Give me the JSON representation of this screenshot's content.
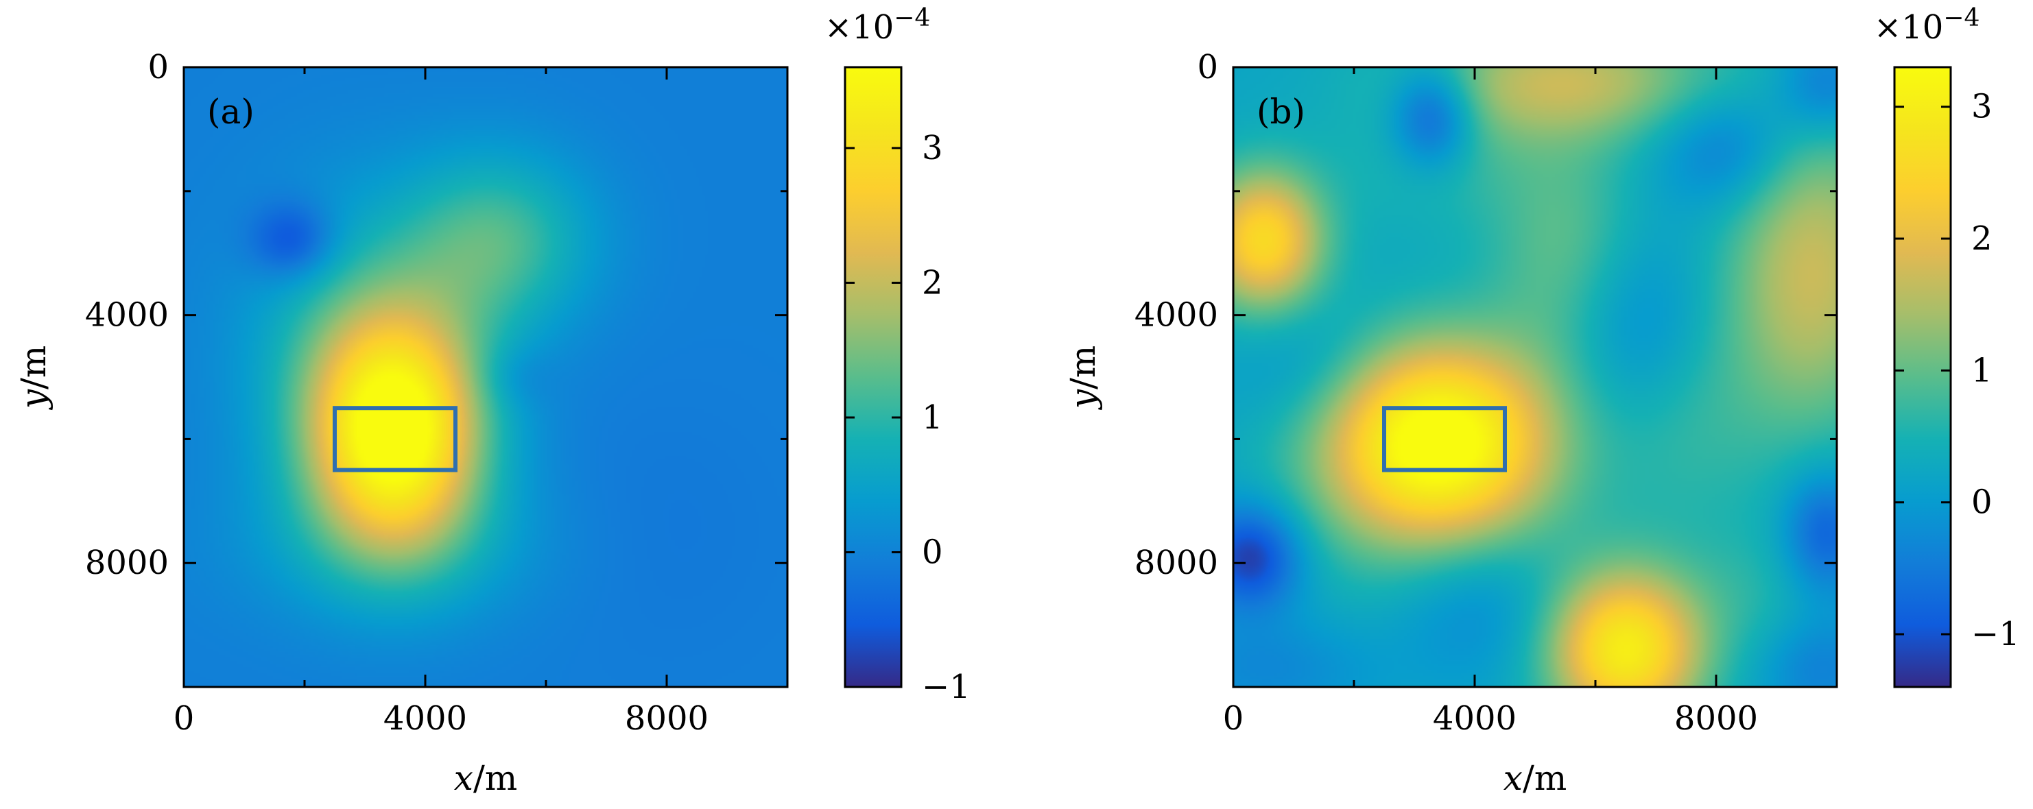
{
  "chart_data": [
    {
      "type": "heatmap",
      "panel_label": "(a)",
      "xlabel_var": "x",
      "xlabel_unit": "/m",
      "ylabel_var": "y",
      "ylabel_unit": "/m",
      "xlim": [
        0,
        10000
      ],
      "ylim": [
        0,
        10000
      ],
      "y_inverted": true,
      "xticks": [
        0,
        4000,
        8000
      ],
      "xtick_labels": [
        "0",
        "4000",
        "8000"
      ],
      "xminor": [
        2000,
        6000
      ],
      "yticks": [
        0,
        4000,
        8000
      ],
      "ytick_labels": [
        "0",
        "4000",
        "8000"
      ],
      "yminor": [
        2000,
        6000
      ],
      "colorbar": {
        "min": -1.0,
        "max": 3.6,
        "ticks": [
          -1,
          0,
          1,
          2,
          3
        ],
        "tick_labels": [
          "−1",
          "0",
          "1",
          "2",
          "3"
        ],
        "multiplier_base": "×10",
        "multiplier_exp": "−4"
      },
      "background": -0.05,
      "blobs": [
        {
          "x": 3500,
          "y": 5900,
          "sx": 1000,
          "sy": 1300,
          "amp": 3.6
        },
        {
          "x": 3000,
          "y": 4500,
          "sx": 1400,
          "sy": 1700,
          "amp": 0.9
        },
        {
          "x": 5200,
          "y": 2800,
          "sx": 1100,
          "sy": 1000,
          "amp": 1.2
        },
        {
          "x": 3500,
          "y": 7700,
          "sx": 1800,
          "sy": 900,
          "amp": 0.5
        },
        {
          "x": 1800,
          "y": 2800,
          "sx": 500,
          "sy": 450,
          "amp": -0.9
        },
        {
          "x": 5500,
          "y": 5000,
          "sx": 450,
          "sy": 350,
          "amp": -0.25
        },
        {
          "x": 7800,
          "y": 7500,
          "sx": 1500,
          "sy": 1500,
          "amp": -0.1
        }
      ],
      "target_rect": {
        "x0": 2500,
        "x1": 4500,
        "y0": 5500,
        "y1": 6500
      }
    },
    {
      "type": "heatmap",
      "panel_label": "(b)",
      "xlabel_var": "x",
      "xlabel_unit": "/m",
      "ylabel_var": "y",
      "ylabel_unit": "/m",
      "xlim": [
        0,
        10000
      ],
      "ylim": [
        0,
        10000
      ],
      "y_inverted": true,
      "xticks": [
        0,
        4000,
        8000
      ],
      "xtick_labels": [
        "0",
        "4000",
        "8000"
      ],
      "xminor": [
        2000,
        6000
      ],
      "yticks": [
        0,
        4000,
        8000
      ],
      "ytick_labels": [
        "0",
        "4000",
        "8000"
      ],
      "yminor": [
        2000,
        6000
      ],
      "colorbar": {
        "min": -1.4,
        "max": 3.3,
        "ticks": [
          -1,
          0,
          1,
          2,
          3
        ],
        "tick_labels": [
          "−1",
          "0",
          "1",
          "2",
          "3"
        ],
        "multiplier_base": "×10",
        "multiplier_exp": "−4"
      },
      "background": 0.2,
      "blobs": [
        {
          "x": 3400,
          "y": 6000,
          "sx": 1300,
          "sy": 1100,
          "amp": 3.0
        },
        {
          "x": 3200,
          "y": 6800,
          "sx": 1600,
          "sy": 1400,
          "amp": 0.6
        },
        {
          "x": 500,
          "y": 2800,
          "sx": 700,
          "sy": 800,
          "amp": 2.4
        },
        {
          "x": 6500,
          "y": 9400,
          "sx": 900,
          "sy": 900,
          "amp": 2.8
        },
        {
          "x": 9600,
          "y": 3300,
          "sx": 1000,
          "sy": 1800,
          "amp": 1.5
        },
        {
          "x": 5500,
          "y": 200,
          "sx": 1800,
          "sy": 700,
          "amp": 1.4
        },
        {
          "x": 5500,
          "y": 3000,
          "sx": 900,
          "sy": 1400,
          "amp": 0.8
        },
        {
          "x": 7500,
          "y": 5500,
          "sx": 1000,
          "sy": 1500,
          "amp": 0.5
        },
        {
          "x": 3400,
          "y": 1500,
          "sx": 1200,
          "sy": 800,
          "amp": 0.4
        },
        {
          "x": 3300,
          "y": 800,
          "sx": 500,
          "sy": 600,
          "amp": -1.4
        },
        {
          "x": 8200,
          "y": 1300,
          "sx": 800,
          "sy": 700,
          "amp": -0.8
        },
        {
          "x": 9800,
          "y": 300,
          "sx": 600,
          "sy": 600,
          "amp": -0.9
        },
        {
          "x": 300,
          "y": 7900,
          "sx": 600,
          "sy": 600,
          "amp": -1.5
        },
        {
          "x": 9800,
          "y": 7500,
          "sx": 500,
          "sy": 700,
          "amp": -1.1
        },
        {
          "x": 6700,
          "y": 4200,
          "sx": 900,
          "sy": 1100,
          "amp": -0.7
        },
        {
          "x": 4000,
          "y": 8600,
          "sx": 1000,
          "sy": 900,
          "amp": -0.6
        },
        {
          "x": 1200,
          "y": 4800,
          "sx": 900,
          "sy": 800,
          "amp": -0.4
        },
        {
          "x": 600,
          "y": 9700,
          "sx": 1200,
          "sy": 600,
          "amp": -0.5
        },
        {
          "x": 9700,
          "y": 9700,
          "sx": 700,
          "sy": 600,
          "amp": -0.6
        },
        {
          "x": 8700,
          "y": 8500,
          "sx": 800,
          "sy": 800,
          "amp": 0.3
        }
      ],
      "target_rect": {
        "x0": 2500,
        "x1": 4500,
        "y0": 5500,
        "y1": 6500
      }
    }
  ]
}
